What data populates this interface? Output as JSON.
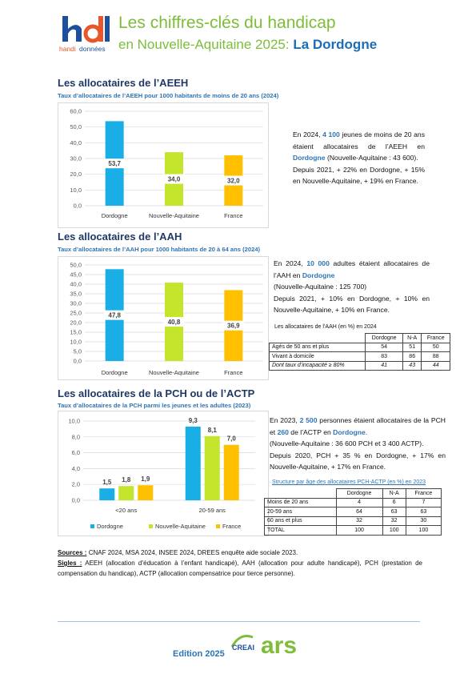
{
  "header": {
    "logo_word1": "handi",
    "logo_word2": "données",
    "title_line1": "Les chiffres-clés du handicap",
    "title_line2": "en Nouvelle-Aquitaine 2025: ",
    "title_highlight": "La Dordogne"
  },
  "sections": [
    {
      "heading": "Les allocataires de l’AEEH",
      "text": [
        [
          {
            "text": "En 2024, "
          },
          {
            "text": "4 100",
            "style": "blue"
          },
          {
            "text": " jeunes de moins de 20 ans étaient allocataires de l’AEEH en "
          },
          {
            "text": "Dordogne",
            "style": "blue"
          },
          {
            "text": " (Nouvelle-Aquitaine : 43 600)."
          }
        ],
        [
          {
            "text": "Depuis 2021, + 22% en Dordogne, + 15% en Nouvelle-Aquitaine, + 19% en France."
          }
        ]
      ]
    },
    {
      "heading": "Les allocataires de l’AAH",
      "text": [
        [
          {
            "text": "En 2024, "
          },
          {
            "text": "10 000",
            "style": "blue"
          },
          {
            "text": " adultes étaient allocataires de l’AAH en "
          },
          {
            "text": "Dordogne",
            "style": "blue"
          }
        ],
        [
          {
            "text": "(Nouvelle-Aquitaine : 125 700)"
          }
        ],
        [
          {
            "text": "Depuis 2021, + 10% en Dordogne, + 10% en Nouvelle-Aquitaine, + 10% en France."
          }
        ]
      ]
    },
    {
      "heading": "Les allocataires de la PCH ou de l’ACTP",
      "text": [
        [
          {
            "text": "En 2023, "
          },
          {
            "text": "2 500",
            "style": "blue"
          },
          {
            "text": " personnes étaient allocataires de la PCH et "
          },
          {
            "text": "260",
            "style": "blue"
          },
          {
            "text": " de l’ACTP en "
          },
          {
            "text": "Dordogne",
            "style": "blue"
          },
          {
            "text": "."
          }
        ],
        [
          {
            "text": "(Nouvelle-Aquitaine : 36 600 PCH et 3 400 ACTP)."
          }
        ],
        [
          {
            "text": "Depuis 2020, PCH + 35 % en Dordogne, + 17% en Nouvelle-Aquitaine, + 17% en France."
          }
        ]
      ]
    }
  ],
  "chart_data": [
    {
      "type": "bar",
      "title": "Taux d’allocataires de l’AEEH pour 1000 habitants de moins de 20 ans (2024)",
      "categories": [
        "Dordogne",
        "Nouvelle-Aquitaine",
        "France"
      ],
      "values": [
        53.7,
        34.0,
        32.0
      ],
      "value_labels": [
        "53,7",
        "34,0",
        "32,0"
      ],
      "colors": [
        "#19aee6",
        "#c3e62d",
        "#ffc000"
      ],
      "ylim": [
        0,
        60
      ],
      "yticks": [
        {
          "value": 0,
          "label": "0,0"
        },
        {
          "value": 10,
          "label": "10,0"
        },
        {
          "value": 20,
          "label": "20,0"
        },
        {
          "value": 30,
          "label": "30,0"
        },
        {
          "value": 40,
          "label": "40,0"
        },
        {
          "value": 50,
          "label": "50,0"
        },
        {
          "value": 60,
          "label": "60,0"
        }
      ],
      "grid": true
    },
    {
      "type": "bar",
      "title": "Taux d’allocataires de l’AAH pour 1000 habitants de 20 à 64 ans (2024)",
      "categories": [
        "Dordogne",
        "Nouvelle-Aquitaine",
        "France"
      ],
      "values": [
        47.8,
        40.8,
        36.9
      ],
      "value_labels": [
        "47,8",
        "40,8",
        "36,9"
      ],
      "colors": [
        "#19aee6",
        "#c3e62d",
        "#ffc000"
      ],
      "ylim": [
        0,
        50
      ],
      "yticks": [
        {
          "value": 0,
          "label": "0,0"
        },
        {
          "value": 5,
          "label": "5,0"
        },
        {
          "value": 10,
          "label": "10,0"
        },
        {
          "value": 15,
          "label": "15,0"
        },
        {
          "value": 20,
          "label": "20,0"
        },
        {
          "value": 25,
          "label": "25,0"
        },
        {
          "value": 30,
          "label": "30,0"
        },
        {
          "value": 35,
          "label": "35,0"
        },
        {
          "value": 40,
          "label": "40,0"
        },
        {
          "value": 45,
          "label": "45,0"
        },
        {
          "value": 50,
          "label": "50,0"
        }
      ],
      "grid": true
    },
    {
      "type": "grouped_bar",
      "title": "Taux d’allocataires de la PCH parmi les jeunes et les adultes (2023)",
      "categories": [
        "<20 ans",
        "20-59 ans"
      ],
      "series": [
        {
          "name": "Dordogne",
          "color": "#19aee6",
          "values": [
            1.5,
            9.3
          ],
          "value_labels": [
            "1,5",
            "9,3"
          ]
        },
        {
          "name": "Nouvelle-Aquitaine",
          "color": "#c3e62d",
          "values": [
            1.8,
            8.1
          ],
          "value_labels": [
            "1,8",
            "8,1"
          ]
        },
        {
          "name": "France",
          "color": "#ffc000",
          "values": [
            1.9,
            7.0
          ],
          "value_labels": [
            "1,9",
            "7,0"
          ]
        }
      ],
      "ylim": [
        0,
        10
      ],
      "yticks": [
        {
          "value": 0,
          "label": "0,0"
        },
        {
          "value": 2,
          "label": "2,0"
        },
        {
          "value": 4,
          "label": "4,0"
        },
        {
          "value": 6,
          "label": "6,0"
        },
        {
          "value": 8,
          "label": "8,0"
        },
        {
          "value": 10,
          "label": "10,0"
        }
      ],
      "grid": true,
      "legend": "bottom"
    }
  ],
  "tables": [
    {
      "caption": "Les allocataires de l’AAH (en %) en 2024",
      "columns": [
        "Dordogne",
        "N-A",
        "France"
      ],
      "rows": [
        {
          "label": "Agés de 50 ans et plus",
          "values": [
            54,
            51,
            50
          ]
        },
        {
          "label": "Vivant à domicile",
          "values": [
            83,
            86,
            88
          ]
        },
        {
          "label": "Dont taux d’incapacité ≥ 80%",
          "values": [
            41,
            43,
            44
          ],
          "italic": true
        }
      ]
    },
    {
      "caption": "Structure par âge des allocataires PCH-ACTP (en %) en 2023",
      "columns": [
        "Dordogne",
        "N-A",
        "France"
      ],
      "rows": [
        {
          "label": "Moins de 20 ans",
          "values": [
            4,
            6,
            7
          ]
        },
        {
          "label": "20-59 ans",
          "values": [
            64,
            63,
            63
          ]
        },
        {
          "label": "60 ans et plus",
          "values": [
            32,
            32,
            30
          ]
        },
        {
          "label": "TOTAL",
          "values": [
            100,
            100,
            100
          ]
        }
      ]
    }
  ],
  "footer": {
    "sources_label": "Sources :",
    "sources_text": " CNAF 2024, MSA 2024, INSEE 2024, DREES enquête aide sociale 2023.",
    "sigles_label": "Sigles :",
    "sigles_text": " AEEH (allocation d’éducation à l’enfant handicapé), AAH (allocation pour adulte handicapé), PCH (prestation de compensation du handicap), ACTP (allocation compensatrice pour tierce personne).",
    "edition": "Edition 2025",
    "logo1": "CREAI",
    "logo2": "ars"
  }
}
